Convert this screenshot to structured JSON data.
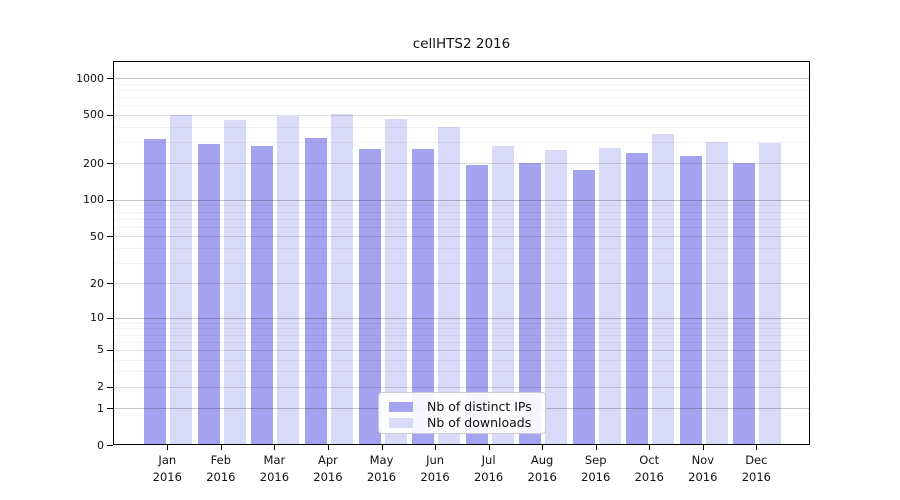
{
  "chart_data": {
    "type": "bar",
    "title": "cellHTS2 2016",
    "categories": [
      "Jan 2016",
      "Feb 2016",
      "Mar 2016",
      "Apr 2016",
      "May 2016",
      "Jun 2016",
      "Jul 2016",
      "Aug 2016",
      "Sep 2016",
      "Oct 2016",
      "Nov 2016",
      "Dec 2016"
    ],
    "series": [
      {
        "name": "Nb of distinct IPs",
        "color": "#a3a3f0",
        "values": [
          315,
          290,
          280,
          320,
          260,
          260,
          195,
          200,
          175,
          245,
          230,
          200
        ]
      },
      {
        "name": "Nb of downloads",
        "color": "#d9d9f8",
        "values": [
          500,
          455,
          490,
          505,
          465,
          395,
          280,
          255,
          265,
          345,
          300,
          295
        ]
      }
    ],
    "xlabel": "",
    "ylabel": "",
    "yscale": "log1p",
    "yticks": [
      0,
      1,
      2,
      5,
      10,
      20,
      50,
      100,
      200,
      500,
      1000
    ],
    "ylim": [
      0,
      1380
    ],
    "grid": "horizontal",
    "legend_position": "inside-bottom-center",
    "colors": {
      "grid_major": "rgba(0,0,0,0.22)",
      "grid_mid": "rgba(0,0,0,0.12)",
      "grid_minor": "rgba(0,0,0,0.055)",
      "axis": "#000000",
      "text": "#111111",
      "background": "#ffffff"
    },
    "grid_major_values": [
      1,
      10,
      100,
      1000
    ],
    "grid_mid_values": [
      2,
      5,
      20,
      50,
      200,
      500
    ],
    "grid_minor_values": [
      3,
      4,
      6,
      7,
      8,
      9,
      30,
      40,
      60,
      70,
      80,
      90,
      300,
      400,
      600,
      700,
      800,
      900
    ]
  }
}
